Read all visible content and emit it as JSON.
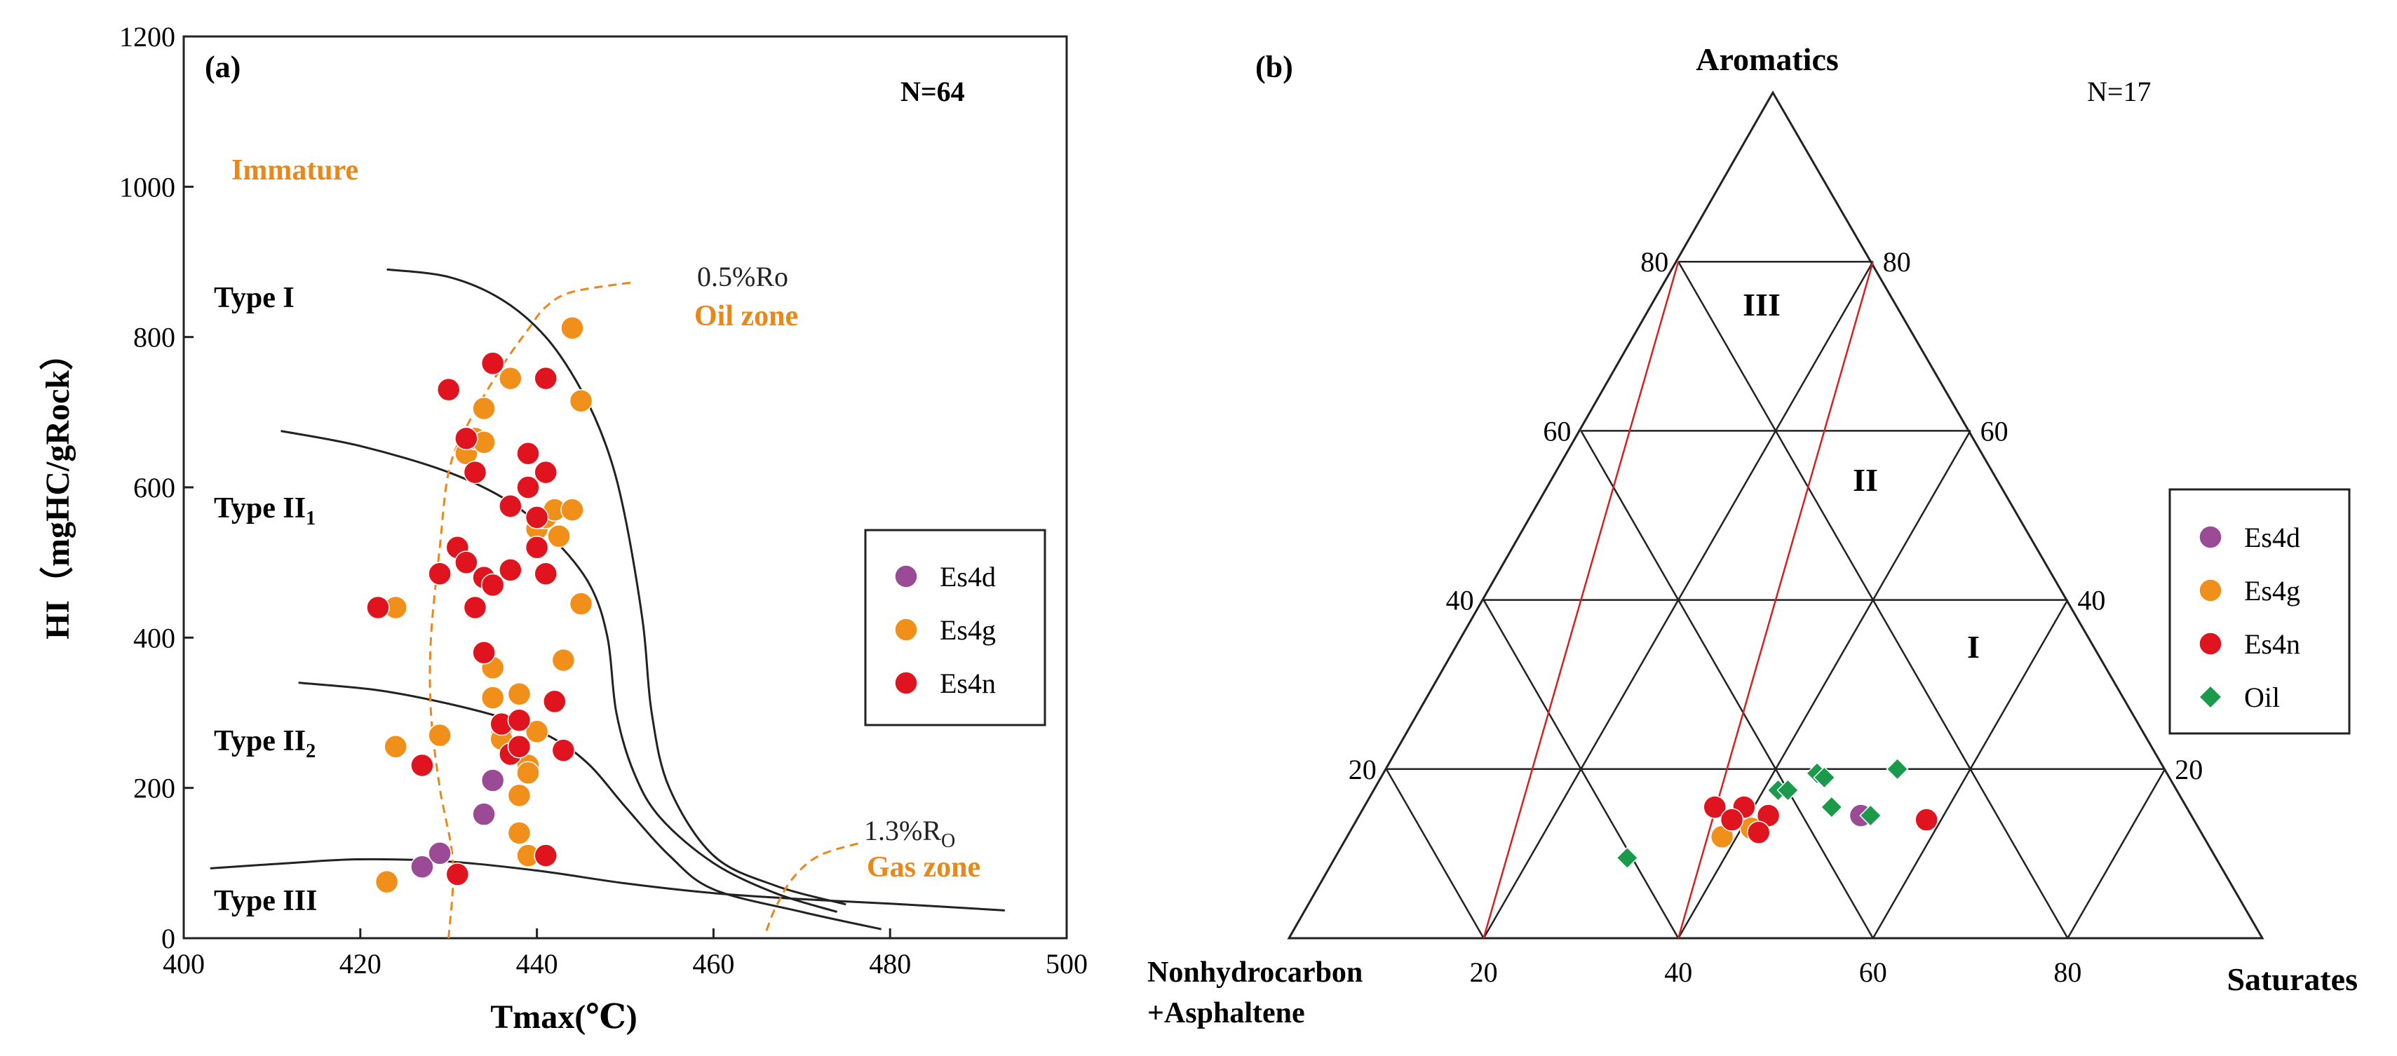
{
  "colors": {
    "Es4d": "#9b4a96",
    "Es4g": "#f0901a",
    "Es4n": "#e0141e",
    "Oil": "#1a9a4a",
    "zone_text": "#e8881a",
    "zone_line": "#e8881a",
    "ternary_division": "#d62020",
    "axis": "#222222"
  },
  "chart_data": [
    {
      "type": "scatter",
      "panel_label": "(a)",
      "title": "",
      "xlabel": "Tmax(℃)",
      "ylabel": "HI（mgHC/gRock）",
      "xlim": [
        400,
        500
      ],
      "ylim": [
        0,
        1200
      ],
      "x_ticks": [
        400,
        420,
        440,
        460,
        480,
        500
      ],
      "y_ticks": [
        0,
        200,
        400,
        600,
        800,
        1000,
        1200
      ],
      "count_label": "N=64",
      "legend_position": "right-middle",
      "legend": [
        {
          "name": "Es4d",
          "marker": "circle"
        },
        {
          "name": "Es4g",
          "marker": "circle"
        },
        {
          "name": "Es4n",
          "marker": "circle"
        }
      ],
      "annotations": {
        "immature": "Immature",
        "ro_05": "0.5%Ro",
        "oil_zone": "Oil zone",
        "ro_13_main": "1.3%R",
        "ro_13_sub": "O",
        "gas_zone": "Gas zone"
      },
      "type_labels": [
        {
          "main": "Type I",
          "sub": ""
        },
        {
          "main": "Type II",
          "sub": "1"
        },
        {
          "main": "Type II",
          "sub": "2"
        },
        {
          "main": "Type III",
          "sub": ""
        }
      ],
      "type_boundaries": [
        [
          [
            423,
            890
          ],
          [
            430,
            880
          ],
          [
            436,
            850
          ],
          [
            441,
            800
          ],
          [
            445,
            730
          ],
          [
            448,
            650
          ],
          [
            450,
            560
          ],
          [
            452,
            420
          ],
          [
            453,
            300
          ],
          [
            455,
            200
          ],
          [
            460,
            110
          ],
          [
            467,
            70
          ],
          [
            475,
            45
          ]
        ],
        [
          [
            411,
            675
          ],
          [
            420,
            655
          ],
          [
            430,
            620
          ],
          [
            437,
            580
          ],
          [
            442,
            530
          ],
          [
            446,
            470
          ],
          [
            448,
            400
          ],
          [
            449,
            300
          ],
          [
            451,
            220
          ],
          [
            454,
            160
          ],
          [
            460,
            100
          ],
          [
            467,
            60
          ],
          [
            474,
            35
          ]
        ],
        [
          [
            413,
            340
          ],
          [
            422,
            330
          ],
          [
            430,
            312
          ],
          [
            437,
            290
          ],
          [
            442,
            265
          ],
          [
            446,
            230
          ],
          [
            450,
            175
          ],
          [
            455,
            110
          ],
          [
            460,
            65
          ],
          [
            470,
            35
          ],
          [
            479,
            12
          ]
        ],
        [
          [
            403,
            93
          ],
          [
            412,
            100
          ],
          [
            420,
            105
          ],
          [
            430,
            102
          ],
          [
            440,
            90
          ],
          [
            450,
            73
          ],
          [
            460,
            60
          ],
          [
            470,
            52
          ],
          [
            480,
            46
          ],
          [
            493,
            37
          ]
        ]
      ],
      "ro_05_line": [
        [
          430,
          0
        ],
        [
          430.5,
          100
        ],
        [
          429,
          200
        ],
        [
          428,
          300
        ],
        [
          428,
          400
        ],
        [
          429,
          520
        ],
        [
          430,
          620
        ],
        [
          432,
          680
        ],
        [
          436,
          760
        ],
        [
          439,
          810
        ],
        [
          441,
          840
        ],
        [
          444,
          860
        ],
        [
          451,
          873
        ]
      ],
      "ro_13_line": [
        [
          466,
          10
        ],
        [
          467,
          40
        ],
        [
          469,
          80
        ],
        [
          472,
          110
        ],
        [
          477,
          128
        ]
      ],
      "series": [
        {
          "name": "Es4d",
          "points": [
            [
              427,
              95
            ],
            [
              429,
              113
            ],
            [
              434,
              165
            ],
            [
              435,
              210
            ]
          ]
        },
        {
          "name": "Es4g",
          "points": [
            [
              423,
              75
            ],
            [
              424,
              255
            ],
            [
              424,
              440
            ],
            [
              429,
              270
            ],
            [
              432,
              645
            ],
            [
              433,
              665
            ],
            [
              434,
              705
            ],
            [
              434,
              660
            ],
            [
              435,
              320
            ],
            [
              435,
              360
            ],
            [
              436,
              270
            ],
            [
              436,
              265
            ],
            [
              437,
              745
            ],
            [
              438,
              140
            ],
            [
              438,
              190
            ],
            [
              438,
              325
            ],
            [
              439,
              230
            ],
            [
              439,
              220
            ],
            [
              439,
              110
            ],
            [
              440,
              275
            ],
            [
              440,
              545
            ],
            [
              440.5,
              560
            ],
            [
              441,
              560
            ],
            [
              442,
              570
            ],
            [
              442.5,
              535
            ],
            [
              443,
              370
            ],
            [
              444,
              812
            ],
            [
              444,
              570
            ],
            [
              445,
              715
            ],
            [
              445,
              445
            ]
          ]
        },
        {
          "name": "Es4n",
          "points": [
            [
              422,
              440
            ],
            [
              427,
              230
            ],
            [
              429,
              485
            ],
            [
              430,
              730
            ],
            [
              431,
              520
            ],
            [
              431,
              85
            ],
            [
              432,
              665
            ],
            [
              432,
              500
            ],
            [
              433,
              440
            ],
            [
              433,
              620
            ],
            [
              434,
              380
            ],
            [
              434,
              480
            ],
            [
              435,
              470
            ],
            [
              435,
              765
            ],
            [
              436,
              285
            ],
            [
              437,
              245
            ],
            [
              437,
              490
            ],
            [
              437,
              575
            ],
            [
              438,
              290
            ],
            [
              438,
              255
            ],
            [
              439,
              600
            ],
            [
              439,
              645
            ],
            [
              440,
              520
            ],
            [
              440,
              560
            ],
            [
              441,
              745
            ],
            [
              441,
              620
            ],
            [
              441,
              485
            ],
            [
              441,
              110
            ],
            [
              442,
              315
            ],
            [
              443,
              250
            ]
          ]
        }
      ]
    },
    {
      "type": "ternary",
      "panel_label": "(b)",
      "count_label": "N=17",
      "apex_top_label": "Aromatics",
      "apex_left_label": [
        "Nonhydrocarbon",
        "+Asphaltene"
      ],
      "apex_right_label": "Saturates",
      "left_edge_ticks": [
        "20",
        "40",
        "60",
        "80"
      ],
      "right_edge_ticks": [
        "20",
        "40",
        "60",
        "80"
      ],
      "bottom_ticks": [
        "20",
        "40",
        "60",
        "80"
      ],
      "region_labels": [
        "III",
        "II",
        "I"
      ],
      "legend_position": "right-middle",
      "legend": [
        {
          "name": "Es4d",
          "marker": "circle"
        },
        {
          "name": "Es4g",
          "marker": "circle"
        },
        {
          "name": "Es4n",
          "marker": "circle"
        },
        {
          "name": "Oil",
          "marker": "diamond"
        }
      ],
      "coordinate_note": "points given as [saturates%, aromatics%]",
      "series": [
        {
          "name": "Es4d",
          "points": [
            [
              51.5,
              14.5
            ]
          ]
        },
        {
          "name": "Es4g",
          "points": [
            [
              38.5,
              12
            ],
            [
              41,
              13
            ]
          ]
        },
        {
          "name": "Es4n",
          "points": [
            [
              36,
              15.5
            ],
            [
              39,
              15.5
            ],
            [
              38.5,
              14
            ],
            [
              42,
              14.5
            ],
            [
              42,
              12.5
            ],
            [
              58.5,
              14
            ]
          ]
        },
        {
          "name": "Oil",
          "points": [
            [
              30,
              9.5
            ],
            [
              41.5,
              17.5
            ],
            [
              42.5,
              17.5
            ],
            [
              44.5,
              19.5
            ],
            [
              45.5,
              19
            ],
            [
              48,
              15.5
            ],
            [
              52.5,
              20
            ],
            [
              52.5,
              14.5
            ]
          ]
        }
      ]
    }
  ]
}
